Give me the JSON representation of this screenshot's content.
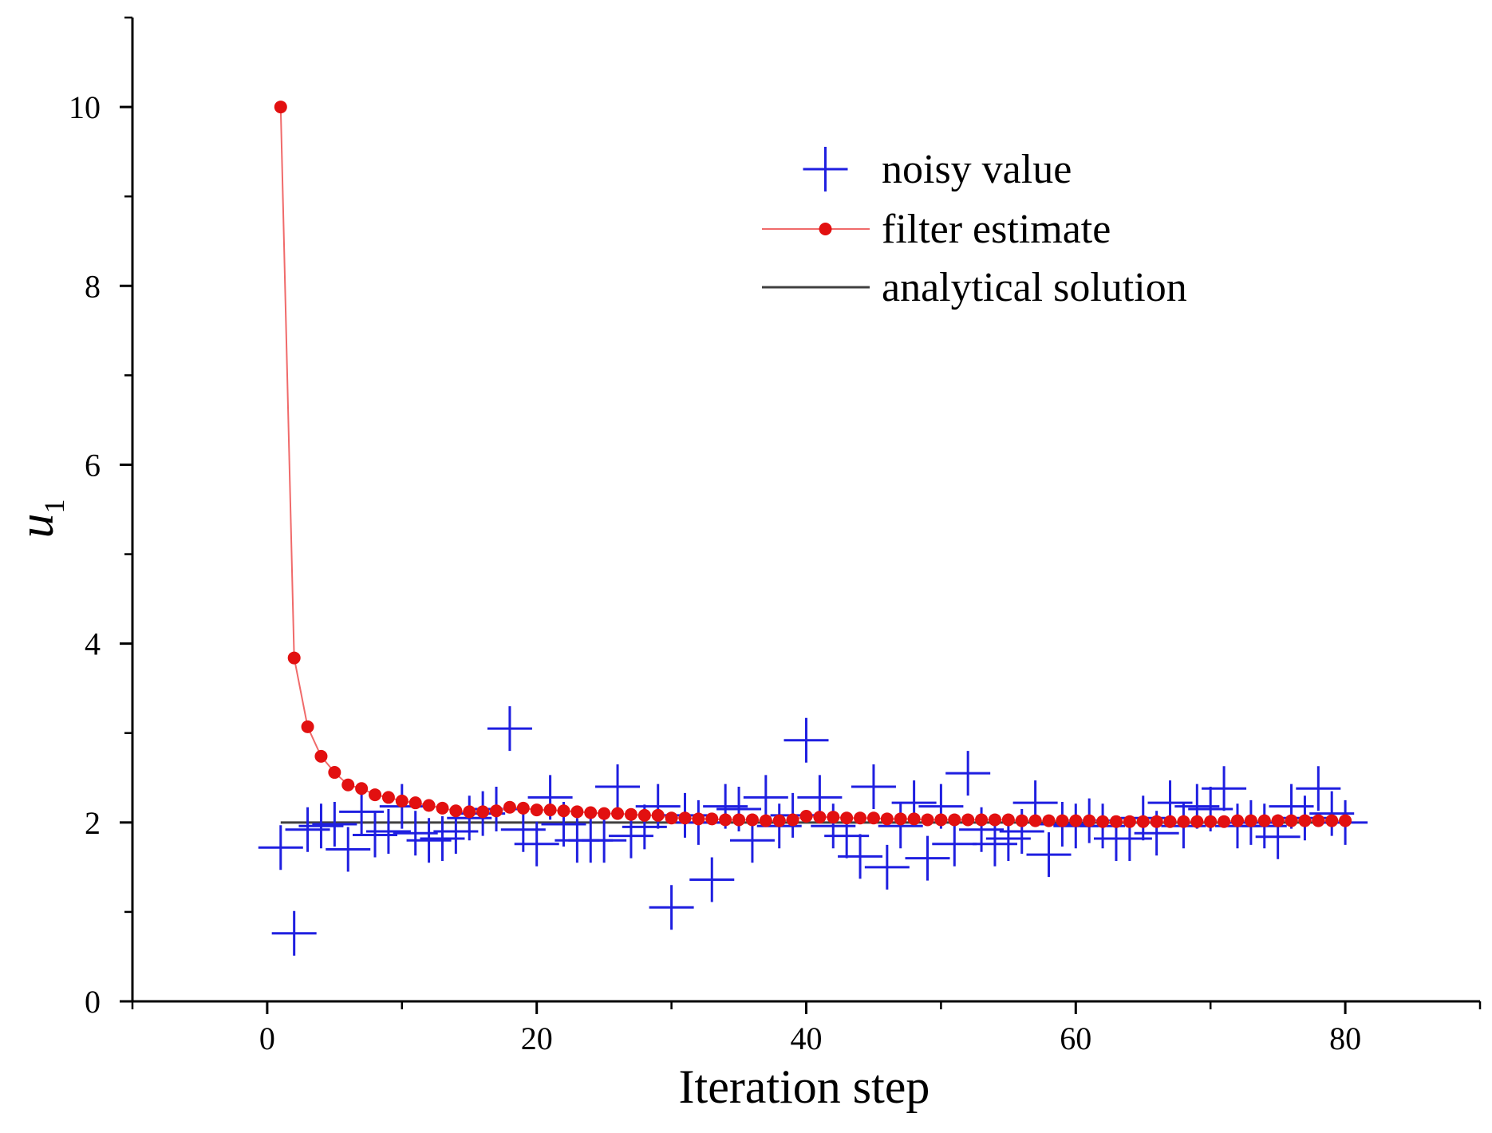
{
  "chart_data": {
    "type": "scatter",
    "title": "",
    "xlabel": "Iteration step",
    "ylabel": "u",
    "ylabel_subscript": "1",
    "xlim": [
      -10,
      90
    ],
    "ylim": [
      0,
      11
    ],
    "x_ticks": [
      0,
      20,
      40,
      60,
      80
    ],
    "y_ticks": [
      0,
      2,
      4,
      6,
      8,
      10
    ],
    "x_tick_labels": [
      "0",
      "20",
      "40",
      "60",
      "80"
    ],
    "y_tick_labels": [
      "0",
      "2",
      "4",
      "6",
      "8",
      "10"
    ],
    "grid": false,
    "legend_position": "top-right",
    "series": [
      {
        "name": "noisy value",
        "kind": "plus-markers",
        "color": "#1f1fe0",
        "x": [
          1,
          2,
          3,
          4,
          5,
          6,
          7,
          8,
          9,
          10,
          11,
          12,
          13,
          14,
          15,
          16,
          17,
          18,
          19,
          20,
          21,
          22,
          23,
          24,
          25,
          26,
          27,
          28,
          29,
          30,
          31,
          32,
          33,
          34,
          35,
          36,
          37,
          38,
          39,
          40,
          41,
          42,
          43,
          44,
          45,
          46,
          47,
          48,
          49,
          50,
          51,
          52,
          53,
          54,
          55,
          56,
          57,
          58,
          59,
          60,
          61,
          62,
          63,
          64,
          65,
          66,
          67,
          68,
          69,
          70,
          71,
          72,
          73,
          74,
          75,
          76,
          77,
          78,
          79,
          80
        ],
        "y": [
          1.72,
          0.76,
          1.92,
          1.96,
          1.98,
          1.7,
          2.12,
          1.86,
          1.9,
          2.18,
          1.88,
          1.8,
          1.82,
          1.9,
          2.05,
          2.1,
          2.15,
          3.05,
          1.92,
          1.76,
          2.28,
          1.98,
          1.8,
          1.8,
          1.8,
          2.4,
          1.85,
          1.95,
          2.18,
          1.05,
          2.08,
          2.0,
          1.36,
          2.18,
          2.15,
          1.8,
          2.28,
          1.96,
          2.08,
          2.92,
          2.28,
          1.96,
          1.85,
          1.62,
          2.4,
          1.5,
          1.96,
          2.22,
          1.6,
          2.18,
          1.76,
          2.55,
          1.92,
          1.76,
          1.82,
          1.9,
          2.22,
          1.64,
          1.98,
          1.96,
          2.02,
          1.96,
          1.82,
          1.82,
          2.05,
          1.88,
          2.22,
          1.96,
          2.18,
          2.15,
          2.38,
          1.96,
          2.0,
          1.96,
          1.84,
          2.18,
          2.05,
          2.38,
          2.1,
          2.0
        ]
      },
      {
        "name": "filter estimate",
        "kind": "line-dots",
        "color": "#e21010",
        "line_color": "#f06a6a",
        "x": [
          1,
          2,
          3,
          4,
          5,
          6,
          7,
          8,
          9,
          10,
          11,
          12,
          13,
          14,
          15,
          16,
          17,
          18,
          19,
          20,
          21,
          22,
          23,
          24,
          25,
          26,
          27,
          28,
          29,
          30,
          31,
          32,
          33,
          34,
          35,
          36,
          37,
          38,
          39,
          40,
          41,
          42,
          43,
          44,
          45,
          46,
          47,
          48,
          49,
          50,
          51,
          52,
          53,
          54,
          55,
          56,
          57,
          58,
          59,
          60,
          61,
          62,
          63,
          64,
          65,
          66,
          67,
          68,
          69,
          70,
          71,
          72,
          73,
          74,
          75,
          76,
          77,
          78,
          79,
          80
        ],
        "y": [
          10.0,
          3.84,
          3.07,
          2.74,
          2.56,
          2.42,
          2.38,
          2.31,
          2.28,
          2.24,
          2.22,
          2.19,
          2.16,
          2.13,
          2.12,
          2.12,
          2.13,
          2.17,
          2.16,
          2.14,
          2.14,
          2.13,
          2.12,
          2.11,
          2.1,
          2.1,
          2.09,
          2.08,
          2.08,
          2.05,
          2.05,
          2.04,
          2.04,
          2.03,
          2.03,
          2.03,
          2.02,
          2.02,
          2.03,
          2.07,
          2.06,
          2.06,
          2.05,
          2.05,
          2.05,
          2.04,
          2.04,
          2.04,
          2.03,
          2.03,
          2.03,
          2.03,
          2.03,
          2.03,
          2.03,
          2.02,
          2.02,
          2.02,
          2.02,
          2.02,
          2.02,
          2.01,
          2.01,
          2.01,
          2.01,
          2.01,
          2.01,
          2.01,
          2.01,
          2.01,
          2.01,
          2.02,
          2.02,
          2.02,
          2.02,
          2.02,
          2.02,
          2.02,
          2.02,
          2.02
        ]
      },
      {
        "name": "analytical solution",
        "kind": "line",
        "color": "#404040",
        "x": [
          1,
          80
        ],
        "y": [
          2.0,
          2.0
        ]
      }
    ]
  }
}
